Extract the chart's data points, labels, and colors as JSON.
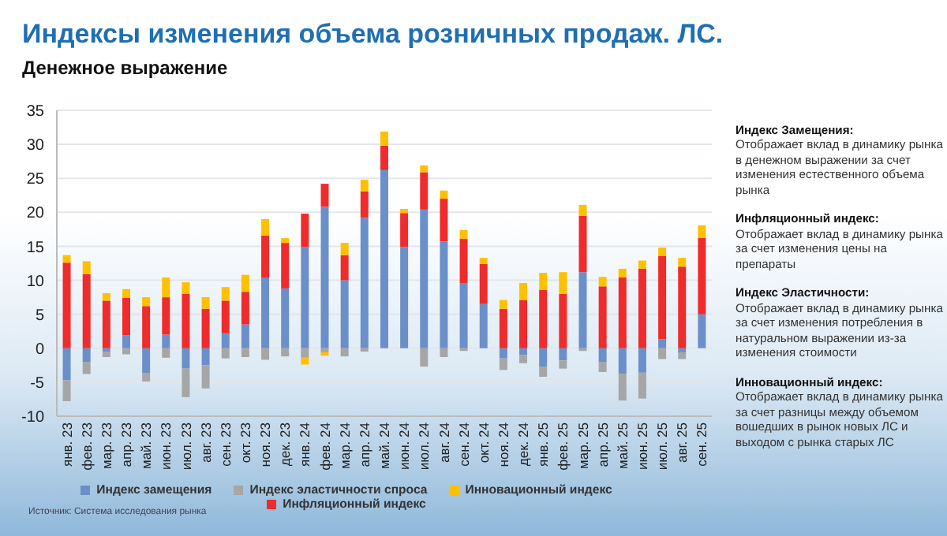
{
  "chart_data": {
    "type": "bar",
    "title": "Индексы изменения объема розничных продаж. ЛС.",
    "subtitle": "Денежное выражение",
    "categories": [
      "янв. 23",
      "фев. 23",
      "мар. 23",
      "апр. 23",
      "май. 23",
      "июн. 23",
      "июл. 23",
      "авг. 23",
      "сен. 23",
      "окт. 23",
      "ноя. 23",
      "дек. 23",
      "янв. 24",
      "фев. 24",
      "мар. 24",
      "апр. 24",
      "май. 24",
      "июн. 24",
      "июл. 24",
      "авг. 24",
      "сен. 24",
      "окт. 24",
      "ноя. 24",
      "дек. 24",
      "янв. 25",
      "фев. 25",
      "мар. 25",
      "апр. 25",
      "май. 25",
      "июн. 25",
      "июл. 25",
      "авг. 25",
      "сен. 25"
    ],
    "series": [
      {
        "name": "Индекс замещения",
        "color": "#6b8fc9",
        "values": [
          -4.7,
          -2.0,
          -0.5,
          1.9,
          -3.7,
          2.0,
          -3.0,
          -2.5,
          2.2,
          3.5,
          10.4,
          8.8,
          14.9,
          20.8,
          10.0,
          19.2,
          26.2,
          14.9,
          20.4,
          15.7,
          9.6,
          6.5,
          -1.5,
          -1.0,
          -2.7,
          -1.8,
          11.2,
          -2.0,
          -3.8,
          -3.6,
          1.3,
          -0.6,
          5.0
        ]
      },
      {
        "name": "Инфляционный индекс",
        "color": "#f02b2b",
        "values": [
          12.6,
          10.9,
          7.0,
          5.5,
          6.2,
          5.5,
          8.0,
          5.8,
          4.8,
          4.8,
          6.2,
          6.7,
          4.9,
          3.4,
          3.7,
          3.9,
          3.6,
          5.0,
          5.5,
          6.3,
          6.5,
          5.9,
          5.8,
          7.1,
          8.6,
          8.0,
          8.3,
          9.1,
          10.4,
          11.7,
          12.3,
          12.0,
          11.2
        ]
      },
      {
        "name": "Индекс эластичности спроса",
        "color": "#a6a6a6",
        "values": [
          -3.1,
          -1.8,
          -0.8,
          -0.9,
          -1.2,
          -1.4,
          -4.2,
          -3.4,
          -1.5,
          -1.3,
          -1.7,
          -1.2,
          -1.4,
          -0.6,
          -1.2,
          -0.5,
          null,
          null,
          -2.7,
          -1.3,
          -0.4,
          null,
          -1.7,
          -1.2,
          -1.5,
          -1.2,
          -0.4,
          -1.5,
          -3.9,
          -3.8,
          -1.6,
          -1.0,
          null
        ]
      },
      {
        "name": "Инновационный индекс",
        "color": "#ffc000",
        "values": [
          1.1,
          1.9,
          1.1,
          1.3,
          1.3,
          2.9,
          1.7,
          1.7,
          2.0,
          2.5,
          2.4,
          0.7,
          -1.0,
          -0.5,
          1.8,
          1.7,
          2.1,
          0.6,
          1.0,
          1.2,
          1.3,
          0.9,
          1.3,
          2.5,
          2.5,
          3.2,
          1.6,
          1.4,
          1.3,
          1.2,
          1.2,
          1.3,
          1.9
        ]
      }
    ],
    "stacked": true,
    "ylim": [
      -10,
      35
    ],
    "yticks": [
      -10,
      -5,
      0,
      5,
      10,
      15,
      20,
      25,
      30,
      35
    ],
    "grid": "y",
    "legend": "bottom",
    "annotations": [
      "Индекс Замещения:",
      "Отображает вклад в динамику рынка в денежном выражении за счет изменения естественного объема рынка",
      "Инфляционный индекс:",
      "Отображает вклад в динамику рынка за счет изменения цены на препараты",
      "Индекс Эластичности:",
      "Отображает вклад в динамику рынка за счет изменения потребления в натуральном выражении из-за изменения стоимости",
      "Инновационный индекс:",
      "Отображает вклад в динамику рынка за счет разницы между объемом вошедших в рынок новых ЛС и выходом с рынка старых ЛС",
      "Источник: Система исследования рынка"
    ]
  }
}
